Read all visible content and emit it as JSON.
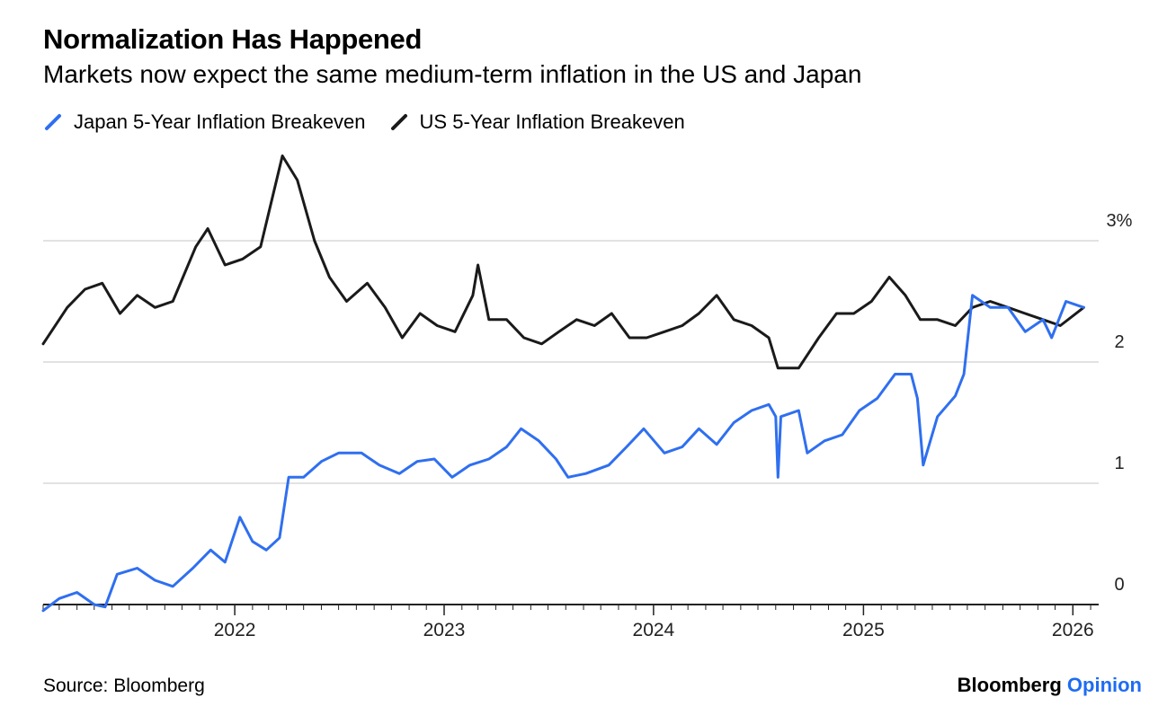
{
  "header": {
    "title": "Normalization Has Happened",
    "subtitle": "Markets now expect the same medium-term inflation in the US and Japan"
  },
  "footer": {
    "source": "Source: Bloomberg",
    "brand_main": "Bloomberg",
    "brand_accent": "Opinion"
  },
  "colors": {
    "japan": "#2f6ff0",
    "us": "#1a1a1a",
    "grid": "#d9d9d9",
    "axis": "#222222",
    "brand_accent": "#1f6cf2"
  },
  "chart_data": {
    "type": "line",
    "title": "Normalization Has Happened",
    "subtitle": "Markets now expect the same medium-term inflation in the US and Japan",
    "y_axis_side": "right",
    "ylim": [
      0,
      3.7
    ],
    "y_ticks": [
      0,
      1,
      2,
      3
    ],
    "y_tick_labels": [
      "0",
      "1",
      "2",
      "3%"
    ],
    "x_ticks": [
      "2022-01-01",
      "2023-01-01",
      "2024-01-01",
      "2025-01-01",
      "2026-01-01"
    ],
    "x_tick_labels": [
      "2022",
      "2023",
      "2024",
      "2025",
      "2026"
    ],
    "xlim": [
      "2021-02-01",
      "2026-02-15"
    ],
    "grid": true,
    "legend_position": "top-left",
    "series": [
      {
        "name": "Japan 5-Year Inflation Breakeven",
        "color": "#2f6ff0",
        "points": [
          [
            "2021-02-01",
            -0.05
          ],
          [
            "2021-03-01",
            0.05
          ],
          [
            "2021-04-01",
            0.1
          ],
          [
            "2021-05-01",
            0.0
          ],
          [
            "2021-05-20",
            -0.02
          ],
          [
            "2021-06-10",
            0.25
          ],
          [
            "2021-07-15",
            0.3
          ],
          [
            "2021-08-15",
            0.2
          ],
          [
            "2021-09-15",
            0.15
          ],
          [
            "2021-10-20",
            0.3
          ],
          [
            "2021-11-20",
            0.45
          ],
          [
            "2021-12-15",
            0.35
          ],
          [
            "2022-01-10",
            0.72
          ],
          [
            "2022-02-01",
            0.52
          ],
          [
            "2022-02-25",
            0.45
          ],
          [
            "2022-03-20",
            0.55
          ],
          [
            "2022-04-05",
            1.05
          ],
          [
            "2022-05-01",
            1.05
          ],
          [
            "2022-06-01",
            1.18
          ],
          [
            "2022-07-01",
            1.25
          ],
          [
            "2022-08-10",
            1.25
          ],
          [
            "2022-09-10",
            1.15
          ],
          [
            "2022-10-15",
            1.08
          ],
          [
            "2022-11-15",
            1.18
          ],
          [
            "2022-12-15",
            1.2
          ],
          [
            "2023-01-15",
            1.05
          ],
          [
            "2023-02-15",
            1.15
          ],
          [
            "2023-03-20",
            1.2
          ],
          [
            "2023-04-20",
            1.3
          ],
          [
            "2023-05-15",
            1.45
          ],
          [
            "2023-06-15",
            1.35
          ],
          [
            "2023-07-15",
            1.2
          ],
          [
            "2023-08-05",
            1.05
          ],
          [
            "2023-09-05",
            1.08
          ],
          [
            "2023-10-15",
            1.15
          ],
          [
            "2023-11-15",
            1.3
          ],
          [
            "2023-12-15",
            1.45
          ],
          [
            "2024-01-20",
            1.25
          ],
          [
            "2024-02-20",
            1.3
          ],
          [
            "2024-03-20",
            1.45
          ],
          [
            "2024-04-20",
            1.32
          ],
          [
            "2024-05-20",
            1.5
          ],
          [
            "2024-06-20",
            1.6
          ],
          [
            "2024-07-20",
            1.65
          ],
          [
            "2024-08-01",
            1.55
          ],
          [
            "2024-08-05",
            1.05
          ],
          [
            "2024-08-10",
            1.55
          ],
          [
            "2024-09-10",
            1.6
          ],
          [
            "2024-09-25",
            1.25
          ],
          [
            "2024-10-25",
            1.35
          ],
          [
            "2024-11-25",
            1.4
          ],
          [
            "2024-12-25",
            1.6
          ],
          [
            "2025-01-25",
            1.7
          ],
          [
            "2025-02-25",
            1.9
          ],
          [
            "2025-03-25",
            1.9
          ],
          [
            "2025-04-05",
            1.7
          ],
          [
            "2025-04-15",
            1.15
          ],
          [
            "2025-05-10",
            1.55
          ],
          [
            "2025-06-10",
            1.72
          ],
          [
            "2025-06-25",
            1.9
          ],
          [
            "2025-07-10",
            2.55
          ],
          [
            "2025-08-10",
            2.45
          ],
          [
            "2025-09-10",
            2.45
          ],
          [
            "2025-10-10",
            2.25
          ],
          [
            "2025-11-10",
            2.35
          ],
          [
            "2025-11-25",
            2.2
          ],
          [
            "2025-12-20",
            2.5
          ],
          [
            "2026-01-20",
            2.45
          ]
        ]
      },
      {
        "name": "US 5-Year Inflation Breakeven",
        "color": "#1a1a1a",
        "points": [
          [
            "2021-02-01",
            2.15
          ],
          [
            "2021-03-15",
            2.45
          ],
          [
            "2021-04-15",
            2.6
          ],
          [
            "2021-05-15",
            2.65
          ],
          [
            "2021-06-15",
            2.4
          ],
          [
            "2021-07-15",
            2.55
          ],
          [
            "2021-08-15",
            2.45
          ],
          [
            "2021-09-15",
            2.5
          ],
          [
            "2021-10-25",
            2.95
          ],
          [
            "2021-11-15",
            3.1
          ],
          [
            "2021-12-15",
            2.8
          ],
          [
            "2022-01-15",
            2.85
          ],
          [
            "2022-02-15",
            2.95
          ],
          [
            "2022-03-25",
            3.7
          ],
          [
            "2022-04-20",
            3.5
          ],
          [
            "2022-05-20",
            3.0
          ],
          [
            "2022-06-15",
            2.7
          ],
          [
            "2022-07-15",
            2.5
          ],
          [
            "2022-08-20",
            2.65
          ],
          [
            "2022-09-20",
            2.45
          ],
          [
            "2022-10-20",
            2.2
          ],
          [
            "2022-11-20",
            2.4
          ],
          [
            "2022-12-20",
            2.3
          ],
          [
            "2023-01-20",
            2.25
          ],
          [
            "2023-02-20",
            2.55
          ],
          [
            "2023-03-01",
            2.8
          ],
          [
            "2023-03-20",
            2.35
          ],
          [
            "2023-04-20",
            2.35
          ],
          [
            "2023-05-20",
            2.2
          ],
          [
            "2023-06-20",
            2.15
          ],
          [
            "2023-07-20",
            2.25
          ],
          [
            "2023-08-20",
            2.35
          ],
          [
            "2023-09-20",
            2.3
          ],
          [
            "2023-10-20",
            2.4
          ],
          [
            "2023-11-20",
            2.2
          ],
          [
            "2023-12-20",
            2.2
          ],
          [
            "2024-01-20",
            2.25
          ],
          [
            "2024-02-20",
            2.3
          ],
          [
            "2024-03-20",
            2.4
          ],
          [
            "2024-04-20",
            2.55
          ],
          [
            "2024-05-20",
            2.35
          ],
          [
            "2024-06-20",
            2.3
          ],
          [
            "2024-07-20",
            2.2
          ],
          [
            "2024-08-05",
            1.95
          ],
          [
            "2024-09-10",
            1.95
          ],
          [
            "2024-10-15",
            2.2
          ],
          [
            "2024-11-15",
            2.4
          ],
          [
            "2024-12-15",
            2.4
          ],
          [
            "2025-01-15",
            2.5
          ],
          [
            "2025-02-15",
            2.7
          ],
          [
            "2025-03-15",
            2.55
          ],
          [
            "2025-04-10",
            2.35
          ],
          [
            "2025-05-10",
            2.35
          ],
          [
            "2025-06-10",
            2.3
          ],
          [
            "2025-07-10",
            2.45
          ],
          [
            "2025-08-10",
            2.5
          ],
          [
            "2025-09-10",
            2.45
          ],
          [
            "2025-10-10",
            2.4
          ],
          [
            "2025-11-10",
            2.35
          ],
          [
            "2025-12-10",
            2.3
          ],
          [
            "2026-01-20",
            2.45
          ]
        ]
      }
    ]
  }
}
